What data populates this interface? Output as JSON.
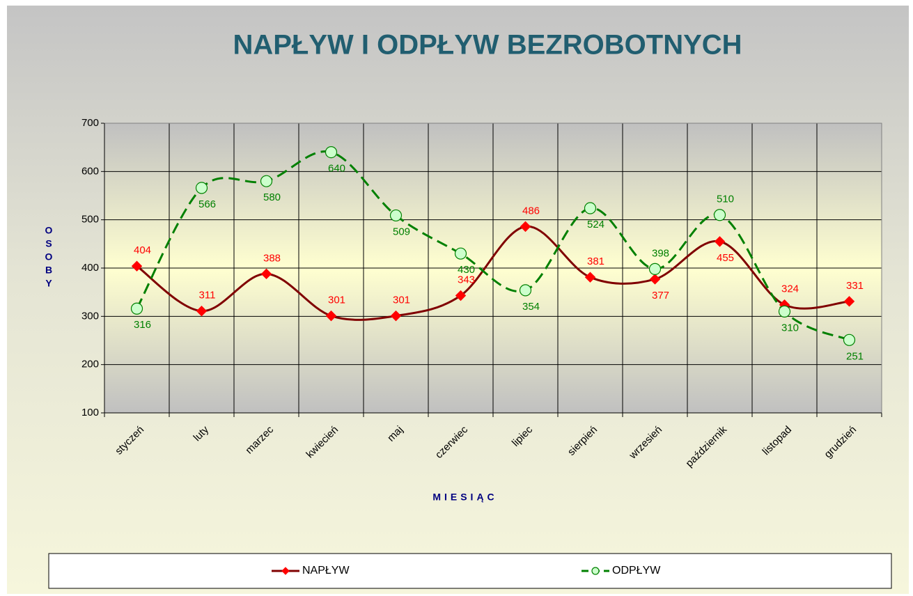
{
  "chart_data": {
    "type": "line",
    "title": "NAPŁYW I ODPŁYW BEZROBOTNYCH",
    "x_label": "MIESIĄC",
    "y_label": "OSOBY",
    "categories": [
      "styczeń",
      "luty",
      "marzec",
      "kwiecień",
      "maj",
      "czerwiec",
      "lipiec",
      "sierpień",
      "wrzesień",
      "październik",
      "listopad",
      "grudzień"
    ],
    "series": [
      {
        "name": "NAPŁYW",
        "color": "#800000",
        "marker_color": "#ff0000",
        "label_color": "#ff0000",
        "dashed": false,
        "marker": "diamond",
        "values": [
          404,
          311,
          388,
          301,
          301,
          343,
          486,
          381,
          377,
          455,
          324,
          331
        ]
      },
      {
        "name": "ODPŁYW",
        "color": "#008000",
        "marker_color": "#ccffcc",
        "label_color": "#008000",
        "dashed": true,
        "marker": "circle",
        "values": [
          316,
          566,
          580,
          640,
          509,
          430,
          354,
          524,
          398,
          510,
          310,
          251
        ]
      }
    ],
    "ylim": [
      100,
      700
    ],
    "yticks": [
      100,
      200,
      300,
      400,
      500,
      600,
      700
    ],
    "grid": true,
    "smooth": true,
    "legend": "bottom"
  }
}
